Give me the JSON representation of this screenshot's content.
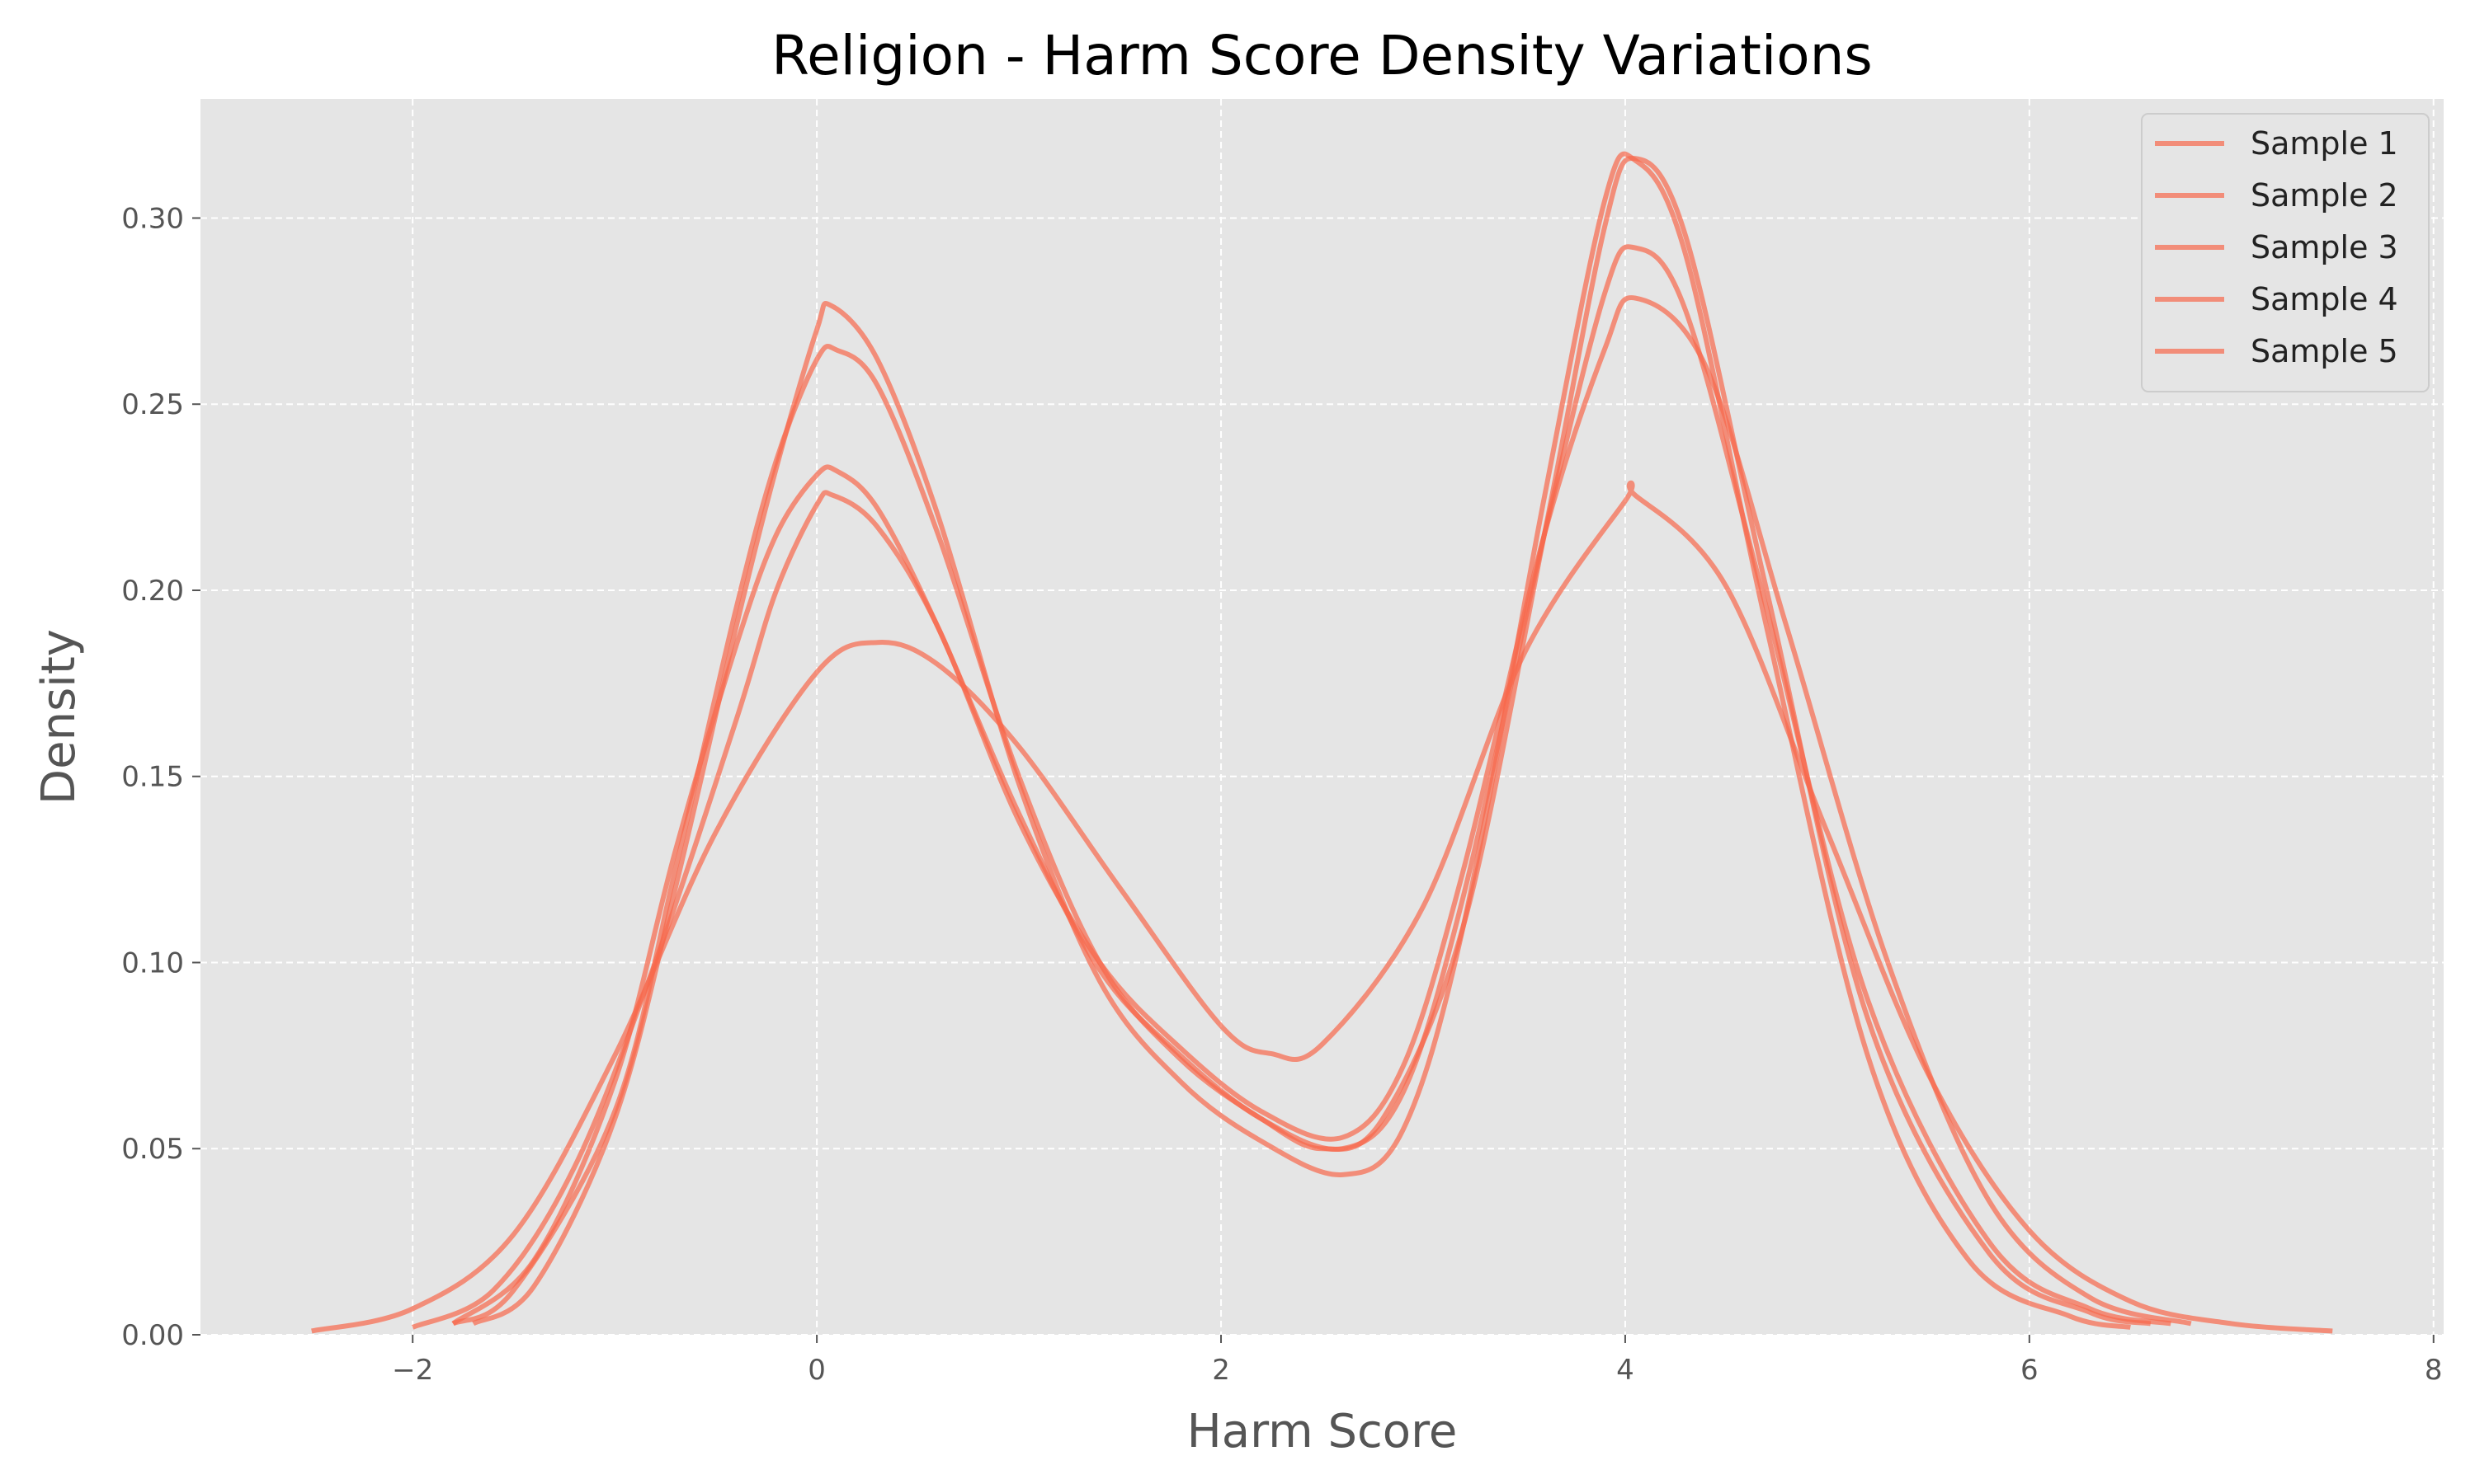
{
  "chart_data": {
    "type": "line",
    "title": "Religion - Harm Score Density Variations",
    "xlabel": "Harm Score",
    "ylabel": "Density",
    "xlim": [
      -3.05,
      8.05
    ],
    "ylim": [
      0,
      0.332
    ],
    "xticks": [
      -2,
      0,
      2,
      4,
      6,
      8
    ],
    "xtick_labels": [
      "−2",
      "0",
      "2",
      "4",
      "6",
      "8"
    ],
    "yticks": [
      0.0,
      0.05,
      0.1,
      0.15,
      0.2,
      0.25,
      0.3
    ],
    "ytick_labels": [
      "0.00",
      "0.05",
      "0.10",
      "0.15",
      "0.20",
      "0.25",
      "0.30"
    ],
    "grid": true,
    "legend_position": "top-right",
    "colors": {
      "line": "#f8684c",
      "plot_background": "#e5e5e5",
      "grid": "#ffffff"
    },
    "series": [
      {
        "name": "Sample 1",
        "x": [
          -1.8,
          -1.5,
          -1.0,
          -0.7,
          -0.4,
          -0.2,
          0.0,
          0.1,
          0.3,
          0.6,
          1.0,
          1.4,
          1.8,
          2.2,
          2.5,
          2.8,
          3.2,
          3.6,
          3.9,
          4.05,
          4.3,
          4.7,
          5.2,
          5.8,
          6.3,
          6.6
        ],
        "y": [
          0.003,
          0.012,
          0.06,
          0.125,
          0.195,
          0.235,
          0.262,
          0.2645,
          0.255,
          0.215,
          0.15,
          0.1,
          0.074,
          0.058,
          0.05,
          0.058,
          0.11,
          0.215,
          0.298,
          0.316,
          0.295,
          0.2,
          0.085,
          0.022,
          0.006,
          0.003
        ]
      },
      {
        "name": "Sample 2",
        "x": [
          -2.0,
          -1.6,
          -1.2,
          -0.8,
          -0.4,
          -0.2,
          0.0,
          0.08,
          0.3,
          0.6,
          1.0,
          1.4,
          1.8,
          2.2,
          2.6,
          2.9,
          3.2,
          3.6,
          3.9,
          4.05,
          4.4,
          4.8,
          5.3,
          5.8,
          6.3,
          6.8
        ],
        "y": [
          0.002,
          0.012,
          0.045,
          0.1,
          0.165,
          0.2,
          0.223,
          0.2255,
          0.217,
          0.19,
          0.138,
          0.1,
          0.077,
          0.06,
          0.053,
          0.072,
          0.125,
          0.215,
          0.265,
          0.2785,
          0.26,
          0.19,
          0.1,
          0.036,
          0.01,
          0.003
        ]
      },
      {
        "name": "Sample 3",
        "x": [
          -2.5,
          -2.0,
          -1.5,
          -1.0,
          -0.5,
          0.0,
          0.3,
          0.6,
          1.0,
          1.5,
          2.0,
          2.25,
          2.5,
          3.0,
          3.5,
          4.0,
          4.05,
          4.5,
          5.0,
          5.5,
          6.0,
          6.5,
          7.0,
          7.5
        ],
        "y": [
          0.001,
          0.007,
          0.027,
          0.075,
          0.135,
          0.178,
          0.186,
          0.18,
          0.158,
          0.12,
          0.083,
          0.0755,
          0.078,
          0.115,
          0.183,
          0.224,
          0.2255,
          0.201,
          0.135,
          0.07,
          0.028,
          0.009,
          0.003,
          0.001
        ]
      },
      {
        "name": "Sample 4",
        "x": [
          -1.7,
          -1.4,
          -1.0,
          -0.7,
          -0.4,
          -0.2,
          0.0,
          0.07,
          0.3,
          0.6,
          1.0,
          1.4,
          1.8,
          2.2,
          2.6,
          2.9,
          3.2,
          3.6,
          3.9,
          4.05,
          4.3,
          4.7,
          5.2,
          5.7,
          6.2,
          6.5
        ],
        "y": [
          0.003,
          0.013,
          0.058,
          0.12,
          0.19,
          0.233,
          0.27,
          0.2765,
          0.262,
          0.22,
          0.148,
          0.095,
          0.068,
          0.052,
          0.043,
          0.055,
          0.11,
          0.225,
          0.305,
          0.3155,
          0.29,
          0.19,
          0.075,
          0.02,
          0.005,
          0.002
        ]
      },
      {
        "name": "Sample 5",
        "x": [
          -1.8,
          -1.4,
          -1.0,
          -0.7,
          -0.4,
          -0.2,
          0.0,
          0.1,
          0.3,
          0.6,
          1.0,
          1.4,
          1.8,
          2.2,
          2.6,
          2.9,
          3.2,
          3.6,
          3.9,
          4.05,
          4.3,
          4.7,
          5.2,
          5.8,
          6.3,
          6.7
        ],
        "y": [
          0.003,
          0.02,
          0.068,
          0.13,
          0.185,
          0.215,
          0.231,
          0.232,
          0.222,
          0.19,
          0.14,
          0.098,
          0.075,
          0.058,
          0.05,
          0.065,
          0.118,
          0.215,
          0.28,
          0.292,
          0.275,
          0.195,
          0.09,
          0.025,
          0.007,
          0.003
        ]
      }
    ]
  }
}
